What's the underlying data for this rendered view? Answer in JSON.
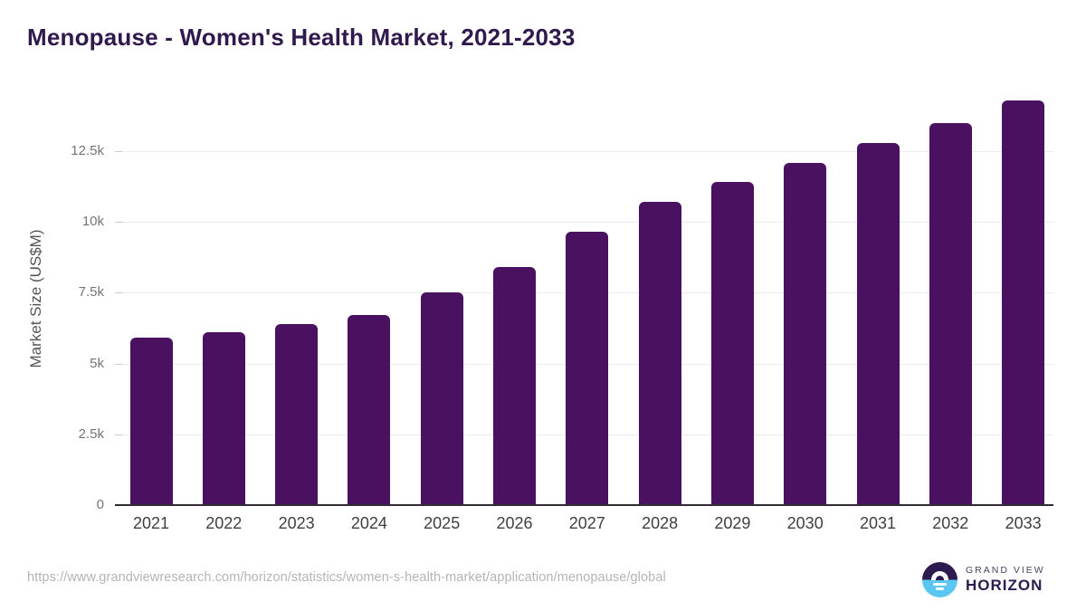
{
  "header": {
    "title": "Menopause - Women's Health Market, 2021-2033"
  },
  "chart_data": {
    "type": "bar",
    "title": "Menopause - Women's Health Market, 2021-2033",
    "categories": [
      "2021",
      "2022",
      "2023",
      "2024",
      "2025",
      "2026",
      "2027",
      "2028",
      "2029",
      "2030",
      "2031",
      "2032",
      "2033"
    ],
    "values": [
      5900,
      6100,
      6400,
      6700,
      7500,
      8400,
      9650,
      10700,
      11400,
      12100,
      12800,
      13500,
      14300
    ],
    "xlabel": "",
    "ylabel": "Market Size (US$M)",
    "ylim": [
      0,
      14650
    ],
    "yticks": [
      {
        "value": 0,
        "label": "0"
      },
      {
        "value": 2500,
        "label": "2.5k"
      },
      {
        "value": 5000,
        "label": "5k"
      },
      {
        "value": 7500,
        "label": "7.5k"
      },
      {
        "value": 10000,
        "label": "10k"
      },
      {
        "value": 12500,
        "label": "12.5k"
      }
    ],
    "grid": "horizontal",
    "legend": "none",
    "bar_color": "#4a1161"
  },
  "footer": {
    "source_url": "https://www.grandviewresearch.com/horizon/statistics/women-s-health-market/application/menopause/global",
    "logo": {
      "line1": "GRAND VIEW",
      "line2": "HORIZON"
    }
  },
  "colors": {
    "bar": "#4a1161",
    "title_text": "#301a4d",
    "axis_text": "#757575",
    "x_label_text": "#3f3f3f",
    "gridline": "#ebebeb",
    "axis_line": "#2f2a33",
    "url_text": "#b4b4b4",
    "logo_dark": "#2c1b4e",
    "logo_blue": "#5bc6f2"
  }
}
